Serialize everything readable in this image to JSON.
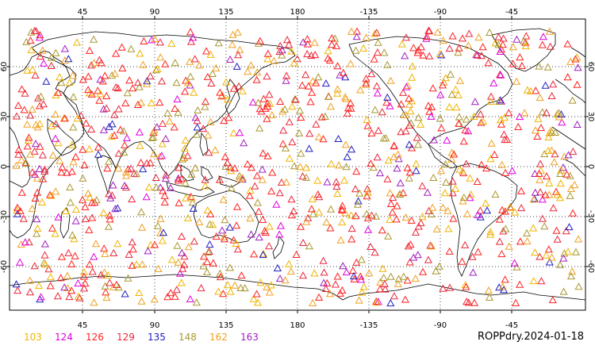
{
  "map": {
    "projection": "cylindrical equidistant, centered at 180",
    "top_lon_labels": [
      "45",
      "90",
      "135",
      "180",
      "-135",
      "-90",
      "-45"
    ],
    "bottom_lon_labels": [
      "45",
      "90",
      "135",
      "180",
      "-135",
      "-90",
      "-45"
    ],
    "left_lat_labels": [
      "60",
      "30",
      "0",
      "-30",
      "-60"
    ],
    "right_lat_labels": [
      "60",
      "30",
      "0",
      "-30",
      "-60"
    ],
    "gridline_style": "dotted",
    "coastline_color": "#000000",
    "marker_shape": "triangle-outline"
  },
  "legend": {
    "items": [
      {
        "label": "103",
        "color": "#f0b400"
      },
      {
        "label": "124",
        "color": "#e000e0"
      },
      {
        "label": "126",
        "color": "#ff2020"
      },
      {
        "label": "129",
        "color": "#e8283c"
      },
      {
        "label": "135",
        "color": "#2020c0"
      },
      {
        "label": "148",
        "color": "#a89830"
      },
      {
        "label": "162",
        "color": "#f0a020"
      },
      {
        "label": "163",
        "color": "#a020c0"
      }
    ]
  },
  "caption": "ROPPdry.2024-01-18"
}
